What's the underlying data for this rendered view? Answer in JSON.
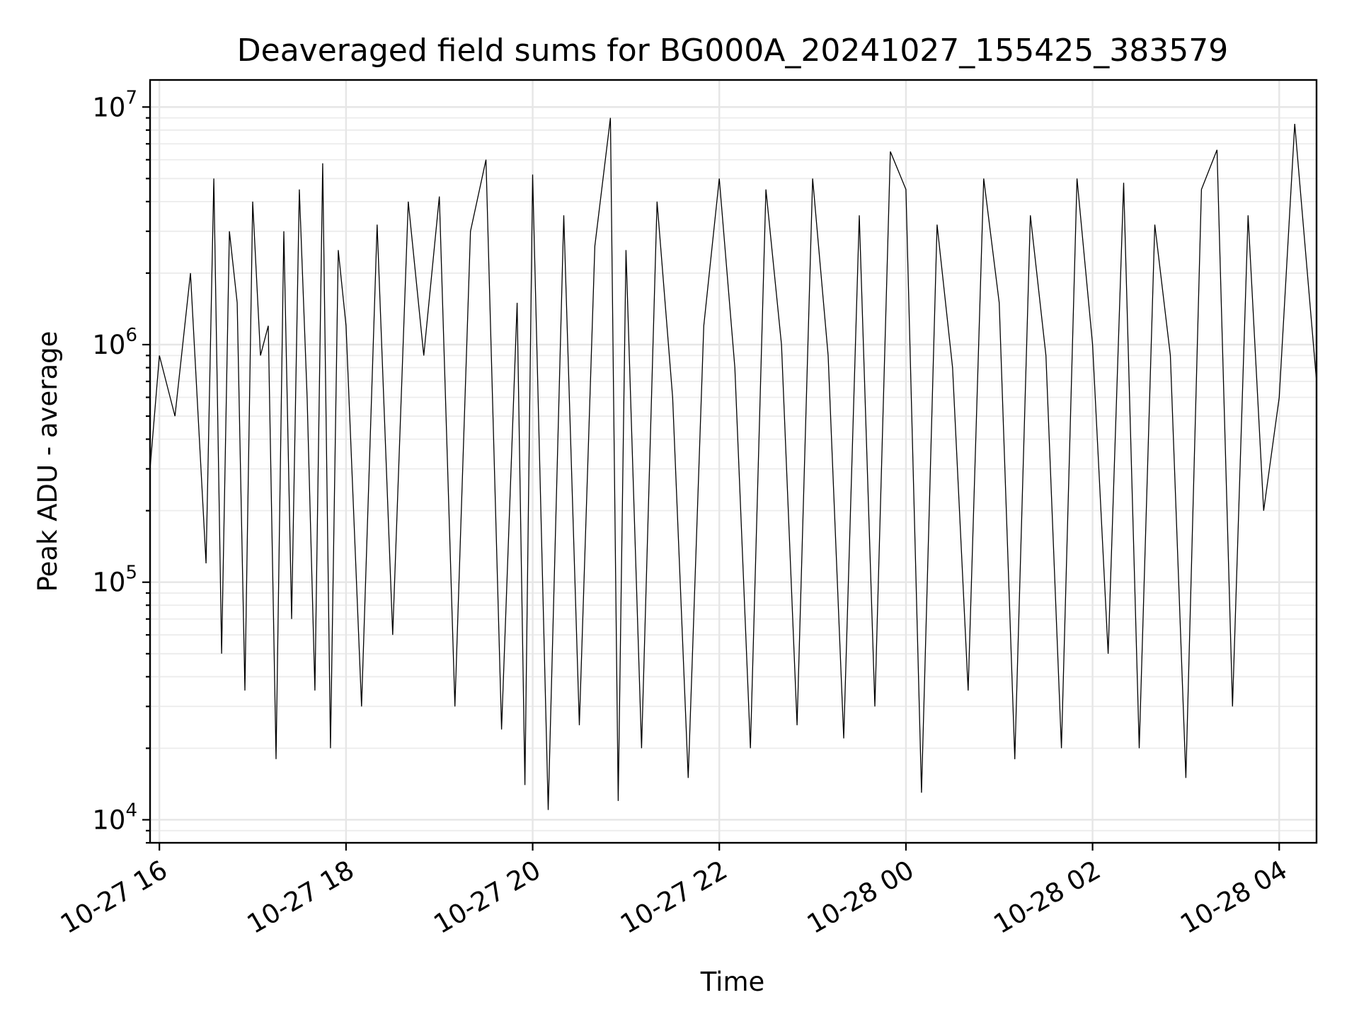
{
  "chart_data": {
    "type": "line",
    "title": "Deaveraged field sums for BG000A_20241027_155425_383579",
    "xlabel": "Time",
    "ylabel": "Peak ADU - average",
    "yscale": "log",
    "ylim": [
      8000,
      13000000
    ],
    "xlim": [
      "2024-10-27 15:54",
      "2024-10-28 04:24"
    ],
    "x_ticks": [
      {
        "at": "2024-10-27 16:00",
        "label": "10-27 16"
      },
      {
        "at": "2024-10-27 18:00",
        "label": "10-27 18"
      },
      {
        "at": "2024-10-27 20:00",
        "label": "10-27 20"
      },
      {
        "at": "2024-10-27 22:00",
        "label": "10-27 22"
      },
      {
        "at": "2024-10-28 00:00",
        "label": "10-28 00"
      },
      {
        "at": "2024-10-28 02:00",
        "label": "10-28 02"
      },
      {
        "at": "2024-10-28 04:00",
        "label": "10-28 04"
      }
    ],
    "y_ticks": [
      {
        "value": 10000,
        "base": "10",
        "exp": "4"
      },
      {
        "value": 100000,
        "base": "10",
        "exp": "5"
      },
      {
        "value": 1000000,
        "base": "10",
        "exp": "6"
      },
      {
        "value": 10000000,
        "base": "10",
        "exp": "7"
      }
    ],
    "grid": true,
    "series_color": "#000000",
    "series": [
      {
        "x": [
          "2024-10-27 15:54",
          "2024-10-27 16:00",
          "2024-10-27 16:10",
          "2024-10-27 16:20",
          "2024-10-27 16:30",
          "2024-10-27 16:35",
          "2024-10-27 16:40",
          "2024-10-27 16:45",
          "2024-10-27 16:50",
          "2024-10-27 16:55",
          "2024-10-27 17:00",
          "2024-10-27 17:05",
          "2024-10-27 17:10",
          "2024-10-27 17:15",
          "2024-10-27 17:20",
          "2024-10-27 17:25",
          "2024-10-27 17:30",
          "2024-10-27 17:35",
          "2024-10-27 17:40",
          "2024-10-27 17:45",
          "2024-10-27 17:50",
          "2024-10-27 17:55",
          "2024-10-27 18:00",
          "2024-10-27 18:10",
          "2024-10-27 18:20",
          "2024-10-27 18:30",
          "2024-10-27 18:40",
          "2024-10-27 18:50",
          "2024-10-27 19:00",
          "2024-10-27 19:10",
          "2024-10-27 19:20",
          "2024-10-27 19:30",
          "2024-10-27 19:40",
          "2024-10-27 19:50",
          "2024-10-27 19:55",
          "2024-10-27 20:00",
          "2024-10-27 20:10",
          "2024-10-27 20:20",
          "2024-10-27 20:30",
          "2024-10-27 20:40",
          "2024-10-27 20:50",
          "2024-10-27 20:55",
          "2024-10-27 21:00",
          "2024-10-27 21:10",
          "2024-10-27 21:20",
          "2024-10-27 21:30",
          "2024-10-27 21:40",
          "2024-10-27 21:50",
          "2024-10-27 22:00",
          "2024-10-27 22:10",
          "2024-10-27 22:20",
          "2024-10-27 22:30",
          "2024-10-27 22:40",
          "2024-10-27 22:50",
          "2024-10-27 23:00",
          "2024-10-27 23:10",
          "2024-10-27 23:20",
          "2024-10-27 23:30",
          "2024-10-27 23:40",
          "2024-10-27 23:50",
          "2024-10-28 00:00",
          "2024-10-28 00:10",
          "2024-10-28 00:20",
          "2024-10-28 00:30",
          "2024-10-28 00:40",
          "2024-10-28 00:50",
          "2024-10-28 01:00",
          "2024-10-28 01:10",
          "2024-10-28 01:20",
          "2024-10-28 01:30",
          "2024-10-28 01:40",
          "2024-10-28 01:50",
          "2024-10-28 02:00",
          "2024-10-28 02:10",
          "2024-10-28 02:20",
          "2024-10-28 02:30",
          "2024-10-28 02:40",
          "2024-10-28 02:50",
          "2024-10-28 03:00",
          "2024-10-28 03:10",
          "2024-10-28 03:20",
          "2024-10-28 03:30",
          "2024-10-28 03:40",
          "2024-10-28 03:50",
          "2024-10-28 04:00",
          "2024-10-28 04:10",
          "2024-10-28 04:24"
        ],
        "values": [
          300000,
          900000,
          500000,
          2000000,
          120000,
          5000000,
          50000,
          3000000,
          1500000,
          35000,
          4000000,
          900000,
          1200000,
          18000,
          3000000,
          70000,
          4500000,
          600000,
          35000,
          5800000,
          20000,
          2500000,
          1200000,
          30000,
          3200000,
          60000,
          4000000,
          900000,
          4200000,
          30000,
          3000000,
          6000000,
          24000,
          1500000,
          14000,
          5200000,
          11000,
          3500000,
          25000,
          2600000,
          9000000,
          12000,
          2500000,
          20000,
          4000000,
          600000,
          15000,
          1200000,
          5000000,
          800000,
          20000,
          4500000,
          1000000,
          25000,
          5000000,
          900000,
          22000,
          3500000,
          30000,
          6500000,
          4500000,
          13000,
          3200000,
          800000,
          35000,
          5000000,
          1500000,
          18000,
          3500000,
          900000,
          20000,
          5000000,
          1000000,
          50000,
          4800000,
          20000,
          3200000,
          900000,
          15000,
          4500000,
          6600000,
          30000,
          3500000,
          200000,
          600000,
          8500000,
          700000
        ]
      }
    ]
  }
}
